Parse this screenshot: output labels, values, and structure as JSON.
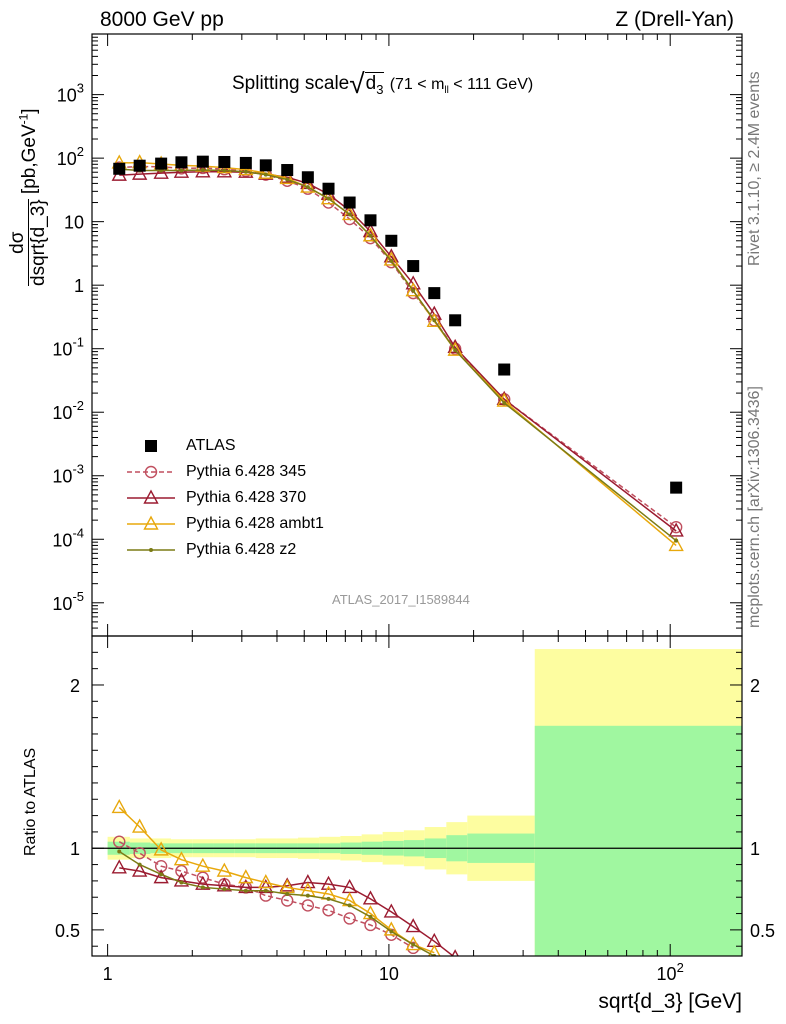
{
  "header": {
    "left": "8000 GeV pp",
    "right": "Z (Drell-Yan)"
  },
  "side_labels": {
    "rivet": "Rivet 3.1.10, ≥ 2.4M events",
    "mcplots": "mcplots.cern.ch [arXiv:1306.3436]"
  },
  "analysis_id": "ATLAS_2017_I1589844",
  "chart_data": [
    {
      "type": "scatter",
      "panel": "main",
      "title_prefix": "Splitting scale",
      "title_var_base": "d",
      "title_var_sub": "3",
      "title_cut_left": "(71 < m",
      "title_cut_sub": "ll",
      "title_cut_right": "< 111 GeV)",
      "ylabel": "dσ/dsqrt{d_3} [pb,GeV⁻¹]",
      "ylabel_num": "dσ",
      "ylabel_den": "dsqrt{d_3}",
      "ylabel_unit": "[pb,GeV",
      "ylabel_unit_sup": "-1",
      "ylabel_unit_end": "]",
      "xlabel": "sqrt{d_3} [GeV]",
      "x_scale": "log",
      "y_scale": "log",
      "xlim": [
        0.88,
        180
      ],
      "ylim": [
        3e-06,
        9000
      ],
      "y_tick_labels": [
        "10^-5",
        "10^-4",
        "10^-3",
        "10^-2",
        "10^-1",
        "1",
        "10",
        "10^2",
        "10^3"
      ],
      "legend_position": "lower-left",
      "series": [
        {
          "name": "ATLAS",
          "color": "#000000",
          "marker": "square",
          "x": [
            1.1,
            1.3,
            1.55,
            1.83,
            2.18,
            2.6,
            3.1,
            3.65,
            4.35,
            5.15,
            6.1,
            7.25,
            8.6,
            10.2,
            12.2,
            14.5,
            17.2,
            25.7,
            105
          ],
          "y": [
            68,
            76,
            82,
            86,
            88,
            87,
            84,
            77,
            65,
            50,
            33,
            20,
            10.5,
            5.0,
            2.0,
            0.75,
            0.28,
            0.047,
            0.00065
          ]
        },
        {
          "name": "Pythia 6.428 345",
          "color": "#c04f5f",
          "marker": "circle-open",
          "line": "dashed",
          "x": [
            1.1,
            1.3,
            1.55,
            1.83,
            2.18,
            2.6,
            3.1,
            3.65,
            4.35,
            5.15,
            6.1,
            7.25,
            8.6,
            10.2,
            12.2,
            14.5,
            17.2,
            25.7,
            105
          ],
          "y": [
            71,
            74,
            73,
            69,
            70,
            67,
            63,
            55,
            44,
            33,
            20,
            11,
            5.5,
            2.3,
            0.75,
            0.28,
            0.1,
            0.016,
            0.000155
          ]
        },
        {
          "name": "Pythia 6.428 370",
          "color": "#9b1b30",
          "marker": "triangle-open",
          "line": "solid",
          "x": [
            1.1,
            1.3,
            1.55,
            1.83,
            2.18,
            2.6,
            3.1,
            3.65,
            4.35,
            5.15,
            6.1,
            7.25,
            8.6,
            10.2,
            12.2,
            14.5,
            17.2,
            25.7,
            105
          ],
          "y": [
            54,
            56,
            58,
            60,
            61,
            61,
            60,
            56,
            50,
            40,
            27,
            15,
            7.0,
            2.8,
            1.05,
            0.35,
            0.105,
            0.016,
            0.000135
          ]
        },
        {
          "name": "Pythia 6.428 ambt1",
          "color": "#e8a80c",
          "marker": "triangle-open",
          "line": "solid",
          "x": [
            1.1,
            1.3,
            1.55,
            1.83,
            2.18,
            2.6,
            3.1,
            3.65,
            4.35,
            5.15,
            6.1,
            7.25,
            8.6,
            10.2,
            12.2,
            14.5,
            17.2,
            25.7,
            105
          ],
          "y": [
            84,
            85,
            81,
            77,
            75,
            71,
            66,
            58,
            48,
            35,
            23,
            13,
            6.0,
            2.5,
            0.82,
            0.27,
            0.095,
            0.015,
            8e-05
          ]
        },
        {
          "name": "Pythia 6.428 z2",
          "color": "#7b7b15",
          "marker": "dot",
          "line": "solid",
          "x": [
            1.1,
            1.3,
            1.55,
            1.83,
            2.18,
            2.6,
            3.1,
            3.65,
            4.35,
            5.15,
            6.1,
            7.25,
            8.6,
            10.2,
            12.2,
            14.5,
            17.2,
            25.7,
            105
          ],
          "y": [
            67,
            64,
            64,
            64,
            65,
            64,
            61,
            55,
            46,
            35,
            23,
            13,
            6.0,
            2.4,
            0.82,
            0.28,
            0.095,
            0.014,
            9.5e-05
          ]
        }
      ]
    },
    {
      "type": "line",
      "panel": "ratio",
      "ylabel": "Ratio to ATLAS",
      "x_scale": "log",
      "xlim": [
        0.88,
        180
      ],
      "ylim": [
        0.34,
        2.3
      ],
      "y_tick_labels": [
        "0.5",
        "1",
        "2"
      ],
      "x_tick_labels": [
        "1",
        "10",
        "10^2"
      ],
      "reference_line": 1,
      "bin_edges": [
        1.0,
        1.2,
        1.42,
        1.68,
        2.0,
        2.38,
        2.83,
        3.36,
        4.0,
        4.75,
        5.65,
        6.72,
        8.0,
        9.5,
        11.3,
        13.4,
        16.0,
        19.0,
        33.0,
        180.0
      ],
      "band_inner_halfwidth": [
        0.04,
        0.035,
        0.03,
        0.03,
        0.03,
        0.03,
        0.03,
        0.03,
        0.03,
        0.03,
        0.03,
        0.035,
        0.04,
        0.045,
        0.05,
        0.06,
        0.08,
        0.09,
        0.75
      ],
      "band_outer_halfwidth": [
        0.07,
        0.06,
        0.06,
        0.055,
        0.055,
        0.055,
        0.055,
        0.06,
        0.06,
        0.065,
        0.07,
        0.075,
        0.085,
        0.1,
        0.11,
        0.13,
        0.16,
        0.2,
        1.22
      ],
      "band_colors": {
        "inner": "#a0f7a0",
        "outer": "#fdfda0"
      },
      "series": [
        {
          "name": "Pythia 6.428 345",
          "color": "#c04f5f",
          "marker": "circle-open",
          "line": "dashed",
          "x": [
            1.1,
            1.3,
            1.55,
            1.83,
            2.18,
            2.6,
            3.1,
            3.65,
            4.35,
            5.15,
            6.1,
            7.25,
            8.6,
            10.2,
            12.2
          ],
          "y": [
            1.04,
            0.97,
            0.89,
            0.86,
            0.82,
            0.78,
            0.76,
            0.71,
            0.68,
            0.65,
            0.62,
            0.57,
            0.53,
            0.47,
            0.39
          ]
        },
        {
          "name": "Pythia 6.428 370",
          "color": "#9b1b30",
          "marker": "triangle-open",
          "line": "solid",
          "x": [
            1.1,
            1.3,
            1.55,
            1.83,
            2.18,
            2.6,
            3.1,
            3.65,
            4.35,
            5.15,
            6.1,
            7.25,
            8.6,
            10.2,
            12.2,
            14.5,
            17.2
          ],
          "y": [
            0.88,
            0.86,
            0.82,
            0.8,
            0.78,
            0.77,
            0.76,
            0.76,
            0.77,
            0.79,
            0.78,
            0.76,
            0.69,
            0.61,
            0.52,
            0.43,
            0.33
          ]
        },
        {
          "name": "Pythia 6.428 ambt1",
          "color": "#e8a80c",
          "marker": "triangle-open",
          "line": "solid",
          "x": [
            1.1,
            1.3,
            1.55,
            1.83,
            2.18,
            2.6,
            3.1,
            3.65,
            4.35,
            5.15,
            6.1,
            7.25,
            8.6,
            10.2,
            12.2,
            14.5
          ],
          "y": [
            1.25,
            1.13,
            0.99,
            0.93,
            0.89,
            0.86,
            0.82,
            0.79,
            0.76,
            0.74,
            0.72,
            0.68,
            0.6,
            0.5,
            0.41,
            0.36
          ]
        },
        {
          "name": "Pythia 6.428 z2",
          "color": "#7b7b15",
          "marker": "dot",
          "line": "solid",
          "x": [
            1.1,
            1.3,
            1.55,
            1.83,
            2.18,
            2.6,
            3.1,
            3.65,
            4.35,
            5.15,
            6.1,
            7.25,
            8.6,
            10.2,
            12.2,
            14.5
          ],
          "y": [
            0.98,
            0.9,
            0.84,
            0.79,
            0.76,
            0.75,
            0.74,
            0.74,
            0.72,
            0.71,
            0.69,
            0.65,
            0.58,
            0.49,
            0.41,
            0.34
          ]
        }
      ]
    }
  ]
}
